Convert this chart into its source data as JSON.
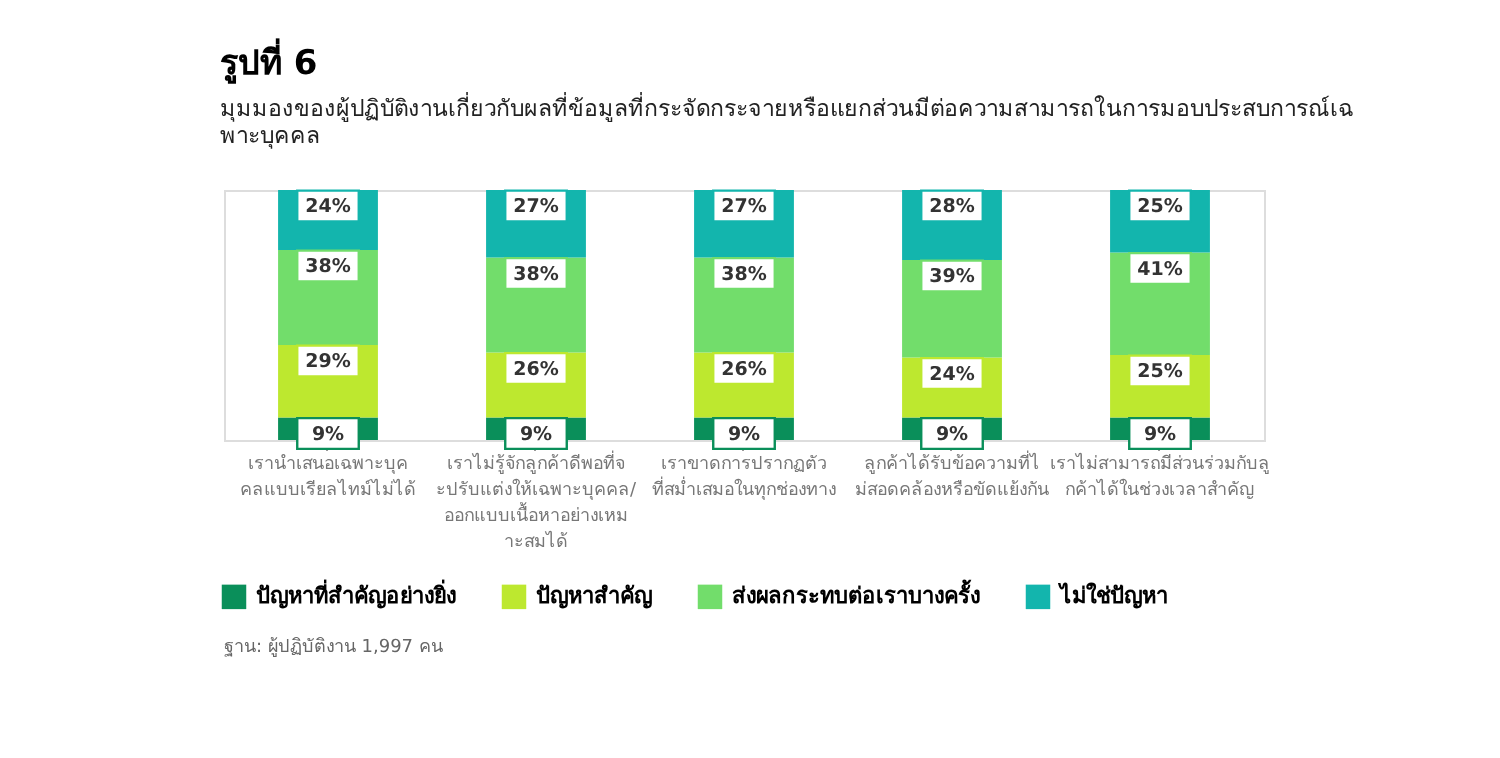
{
  "chart_data": {
    "type": "bar",
    "stacked": true,
    "title": "รูปที่ 6",
    "subtitle": "มุมมองของผู้ปฏิบัติงานเกี่ยวกับผลที่ข้อมูลที่กระจัดกระจายหรือแยกส่วนมีต่อความสามารถในการมอบประสบการณ์เฉ\nพาะบุคคล",
    "categories": [
      "เรานำเสนอเฉพาะบุค\nคลแบบเรียลไทม์ไม่ได้",
      "เราไม่รู้จักลูกค้าดีพอที่จ\nะปรับแต่งให้เฉพาะบุคคล/\nออกแบบเนื้อหาอย่างเหม\nาะสมได้",
      "เราขาดการปรากฏตัว\nที่สม่ำเสมอในทุกช่องทาง",
      "ลูกค้าได้รับข้อความที่ไ\nม่สอดคล้องหรือขัดแย้งกัน",
      "เราไม่สามารถมีส่วนร่วมกับลู\nกค้าได้ในช่วงเวลาสำคัญ"
    ],
    "series": [
      {
        "name": "ปัญหาที่สำคัญอย่างยิ่ง",
        "color": "#0a8f5a",
        "values": [
          9,
          9,
          9,
          9,
          9
        ],
        "value_labels": [
          "9%",
          "9%",
          "9%",
          "9%",
          "9%"
        ]
      },
      {
        "name": "ปัญหาสำคัญ",
        "color": "#bde82f",
        "values": [
          29,
          26,
          26,
          24,
          25
        ],
        "value_labels": [
          "29%",
          "26%",
          "26%",
          "24%",
          "25%"
        ]
      },
      {
        "name": "ส่งผลกระทบต่อเราบางครั้ง",
        "color": "#72dd6b",
        "values": [
          38,
          38,
          38,
          39,
          41
        ],
        "value_labels": [
          "38%",
          "38%",
          "38%",
          "39%",
          "41%"
        ]
      },
      {
        "name": "ไม่ใช่ปัญหา",
        "color": "#13b5ad",
        "values": [
          24,
          27,
          27,
          28,
          25
        ],
        "value_labels": [
          "24%",
          "27%",
          "27%",
          "28%",
          "25%"
        ]
      }
    ],
    "legend": "bottom",
    "annotations": [
      "ฐาน: ผู้ปฏิบัติงาน 1,997 คน"
    ]
  }
}
